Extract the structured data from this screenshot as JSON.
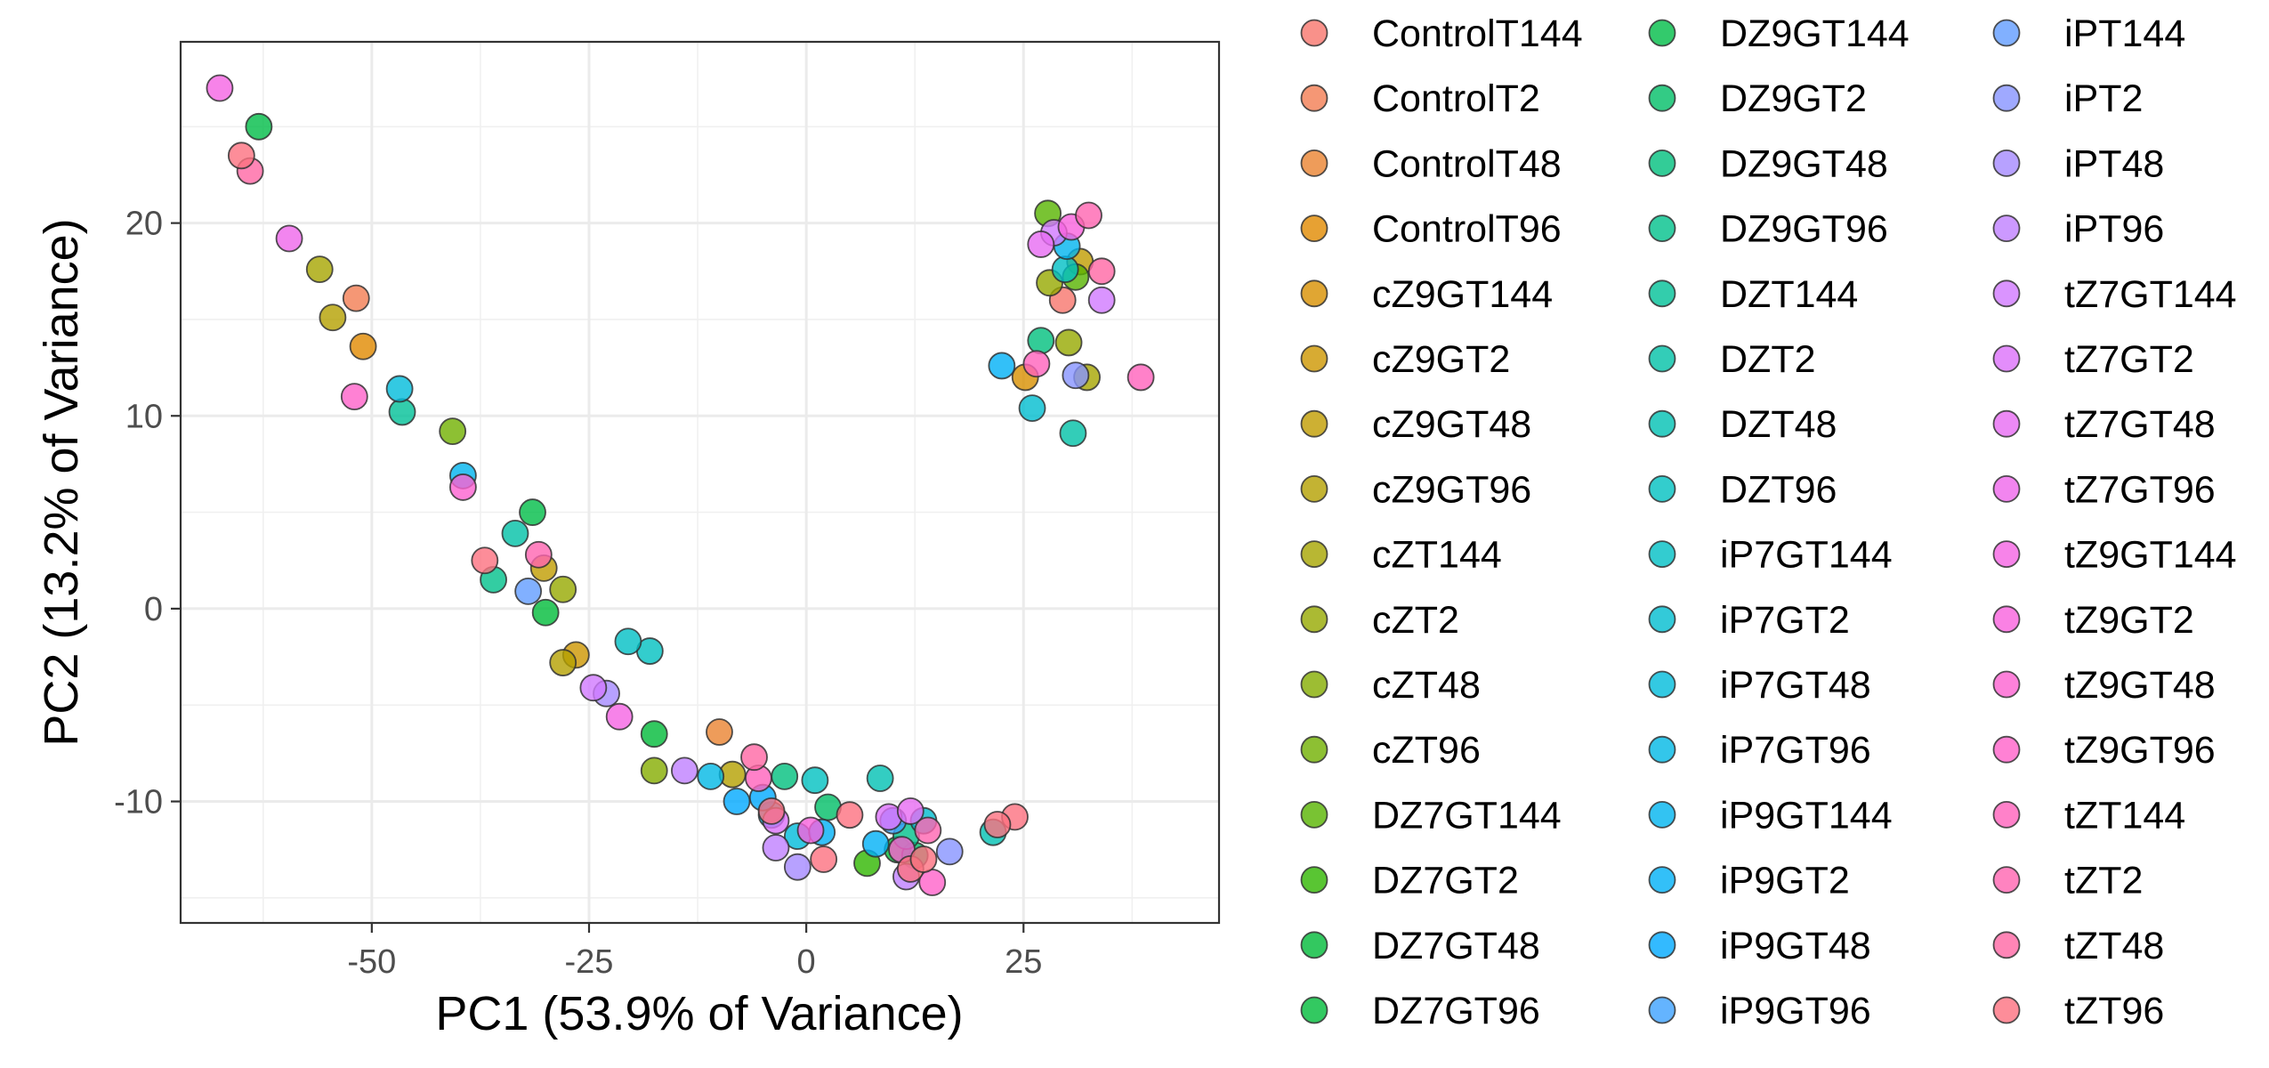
{
  "chart_data": {
    "type": "scatter",
    "xlabel": "PC1 (53.9% of Variance)",
    "ylabel": "PC2 (13.2% of Variance)",
    "xlim": [
      -72,
      47.5
    ],
    "ylim": [
      -16.3,
      29.4
    ],
    "xticks": [
      -50,
      -25,
      0,
      25
    ],
    "xtick_labels": [
      "-50",
      "-25",
      "0",
      "25"
    ],
    "yticks": [
      -10,
      0,
      10,
      20
    ],
    "ytick_labels": [
      "-10",
      "0",
      "10",
      "20"
    ],
    "x_minor_gridlines": [
      -62.5,
      -37.5,
      -12.5,
      12.5,
      37.5
    ],
    "y_minor_gridlines": [
      -15,
      -5,
      5,
      15,
      25
    ],
    "grid": true,
    "legend_position": "right",
    "series": [
      {
        "name": "ControlT144",
        "color": "#F8766D",
        "points": [
          [
            29.5,
            16
          ]
        ]
      },
      {
        "name": "ControlT2",
        "color": "#F27D52",
        "points": [
          [
            -51.8,
            16.1
          ]
        ]
      },
      {
        "name": "ControlT48",
        "color": "#EA8331",
        "points": [
          [
            -10,
            -6.4
          ]
        ]
      },
      {
        "name": "ControlT96",
        "color": "#E18A00",
        "points": [
          [
            -51,
            13.6
          ]
        ]
      },
      {
        "name": "cZ9GT144",
        "color": "#D89000",
        "points": [
          [
            25.2,
            12
          ]
        ]
      },
      {
        "name": "cZ9GT2",
        "color": "#CD9600",
        "points": [
          [
            -26.5,
            -2.4
          ]
        ]
      },
      {
        "name": "cZ9GT48",
        "color": "#C19C00",
        "points": [
          [
            -30.2,
            2.1
          ],
          [
            31.5,
            18
          ]
        ]
      },
      {
        "name": "cZ9GT96",
        "color": "#B4A000",
        "points": [
          [
            -54.5,
            15.1
          ],
          [
            -28,
            -2.8
          ],
          [
            -8.5,
            -8.6
          ]
        ]
      },
      {
        "name": "cZT144",
        "color": "#A6A500",
        "points": [
          [
            -56,
            17.6
          ],
          [
            32.3,
            12
          ]
        ]
      },
      {
        "name": "cZT2",
        "color": "#96A900",
        "points": [
          [
            -28,
            1
          ],
          [
            30.2,
            13.8
          ],
          [
            28,
            16.9
          ]
        ]
      },
      {
        "name": "cZT48",
        "color": "#85AD00",
        "points": [
          [
            -17.5,
            -8.4
          ]
        ]
      },
      {
        "name": "cZT96",
        "color": "#70B000",
        "points": [
          [
            -40.7,
            9.2
          ]
        ]
      },
      {
        "name": "DZ7GT144",
        "color": "#57B400",
        "points": [
          [
            27.8,
            20.5
          ],
          [
            31,
            17.2
          ]
        ]
      },
      {
        "name": "DZ7GT2",
        "color": "#2FB700",
        "points": [
          [
            7,
            -13.2
          ]
        ]
      },
      {
        "name": "DZ7GT48",
        "color": "#00BA38",
        "points": [
          [
            -17.5,
            -6.5
          ],
          [
            10.5,
            -12.5
          ]
        ]
      },
      {
        "name": "DZ7GT96",
        "color": "#00BC3A",
        "points": [
          [
            -30,
            -0.2
          ]
        ]
      },
      {
        "name": "DZ9GT144",
        "color": "#00BD47",
        "points": [
          [
            -63,
            25
          ],
          [
            -31.5,
            5
          ]
        ]
      },
      {
        "name": "DZ9GT2",
        "color": "#00BE67",
        "points": [
          [
            2.5,
            -10.3
          ],
          [
            12.5,
            -12.8
          ]
        ]
      },
      {
        "name": "DZ9GT48",
        "color": "#00BF7D",
        "points": [
          [
            -2.5,
            -8.7
          ],
          [
            27,
            13.9
          ]
        ]
      },
      {
        "name": "DZ9GT96",
        "color": "#00C08B",
        "points": [
          [
            -36,
            1.5
          ],
          [
            11.5,
            -11.8
          ]
        ]
      },
      {
        "name": "DZT144",
        "color": "#00C097",
        "points": [
          [
            -46.5,
            10.2
          ]
        ]
      },
      {
        "name": "DZT2",
        "color": "#00C0A6",
        "points": [
          [
            -33.5,
            3.9
          ],
          [
            30.7,
            9.1
          ]
        ]
      },
      {
        "name": "DZT48",
        "color": "#00C0B3",
        "points": [
          [
            8.5,
            -8.8
          ],
          [
            21.5,
            -11.6
          ]
        ]
      },
      {
        "name": "DZT96",
        "color": "#00C0C0",
        "points": [
          [
            -18,
            -2.2
          ],
          [
            1,
            -8.9
          ]
        ]
      },
      {
        "name": "iP7GT144",
        "color": "#00BFC4",
        "points": [
          [
            -20.5,
            -1.7
          ],
          [
            29.8,
            17.6
          ]
        ]
      },
      {
        "name": "iP7GT2",
        "color": "#00BDD0",
        "points": [
          [
            26,
            10.4
          ],
          [
            13.5,
            -11
          ]
        ]
      },
      {
        "name": "iP7GT48",
        "color": "#00BBDB",
        "points": [
          [
            -46.8,
            11.4
          ],
          [
            -1,
            -11.8
          ]
        ]
      },
      {
        "name": "iP7GT96",
        "color": "#00B8E5",
        "points": [
          [
            -11,
            -8.7
          ],
          [
            -4,
            -10.7
          ]
        ]
      },
      {
        "name": "iP9GT144",
        "color": "#00B4EF",
        "points": [
          [
            -39.5,
            6.9
          ],
          [
            30,
            18.8
          ]
        ]
      },
      {
        "name": "iP9GT2",
        "color": "#00B0F6",
        "points": [
          [
            22.5,
            12.6
          ],
          [
            8,
            -12.2
          ],
          [
            1.8,
            -11.6
          ]
        ]
      },
      {
        "name": "iP9GT48",
        "color": "#00A9FF",
        "points": [
          [
            -5,
            -9.8
          ],
          [
            -8,
            -10
          ]
        ]
      },
      {
        "name": "iP9GT96",
        "color": "#3DA1FF",
        "points": [
          [
            10,
            -11
          ]
        ]
      },
      {
        "name": "iPT144",
        "color": "#619CFF",
        "points": [
          [
            -32,
            0.9
          ]
        ]
      },
      {
        "name": "iPT2",
        "color": "#8794FF",
        "points": [
          [
            31,
            12.1
          ],
          [
            16.5,
            -12.6
          ]
        ]
      },
      {
        "name": "iPT48",
        "color": "#A58AFF",
        "points": [
          [
            -23,
            -4.4
          ],
          [
            -1,
            -13.4
          ]
        ]
      },
      {
        "name": "iPT96",
        "color": "#BF80FF",
        "points": [
          [
            -14,
            -8.4
          ],
          [
            -3.5,
            -12.4
          ],
          [
            11.5,
            -13.9
          ]
        ]
      },
      {
        "name": "tZ7GT144",
        "color": "#D179FF",
        "points": [
          [
            -24.5,
            -4.1
          ],
          [
            28.5,
            19.5
          ],
          [
            34,
            16
          ]
        ]
      },
      {
        "name": "tZ7GT2",
        "color": "#DC71FA",
        "points": [
          [
            9.5,
            -10.8
          ],
          [
            -3.5,
            -11
          ]
        ]
      },
      {
        "name": "tZ7GT48",
        "color": "#E76BF3",
        "points": [
          [
            27,
            18.9
          ],
          [
            12,
            -10.5
          ]
        ]
      },
      {
        "name": "tZ7GT96",
        "color": "#EF67EB",
        "points": [
          [
            -59.5,
            19.2
          ]
        ]
      },
      {
        "name": "tZ9GT144",
        "color": "#F564E3",
        "points": [
          [
            -21.5,
            -5.6
          ],
          [
            -67.5,
            27
          ]
        ]
      },
      {
        "name": "tZ9GT2",
        "color": "#F962DD",
        "points": [
          [
            30.5,
            19.8
          ],
          [
            0.5,
            -11.5
          ]
        ]
      },
      {
        "name": "tZ9GT48",
        "color": "#FD61D1",
        "points": [
          [
            -39.5,
            6.3
          ],
          [
            11,
            -12.5
          ]
        ]
      },
      {
        "name": "tZ9GT96",
        "color": "#FF61C9",
        "points": [
          [
            -52,
            11
          ],
          [
            14.5,
            -14.2
          ]
        ]
      },
      {
        "name": "tZT144",
        "color": "#FF62BC",
        "points": [
          [
            38.5,
            12
          ],
          [
            26.5,
            12.7
          ],
          [
            -5.5,
            -8.8
          ]
        ]
      },
      {
        "name": "tZT2",
        "color": "#FF64B0",
        "points": [
          [
            32.5,
            20.4
          ],
          [
            14,
            -11.5
          ],
          [
            -30.8,
            2.8
          ]
        ]
      },
      {
        "name": "tZT48",
        "color": "#FF67A4",
        "points": [
          [
            34,
            17.5
          ],
          [
            -64,
            22.7
          ],
          [
            -6,
            -7.7
          ]
        ]
      },
      {
        "name": "tZT96",
        "color": "#FC717F",
        "points": [
          [
            -65,
            23.5
          ],
          [
            -37,
            2.5
          ],
          [
            24,
            -10.8
          ],
          [
            5,
            -10.7
          ],
          [
            22,
            -11.2
          ],
          [
            -4,
            -10.5
          ],
          [
            2,
            -13
          ],
          [
            12,
            -13.5
          ],
          [
            13.5,
            -13
          ]
        ]
      }
    ]
  }
}
